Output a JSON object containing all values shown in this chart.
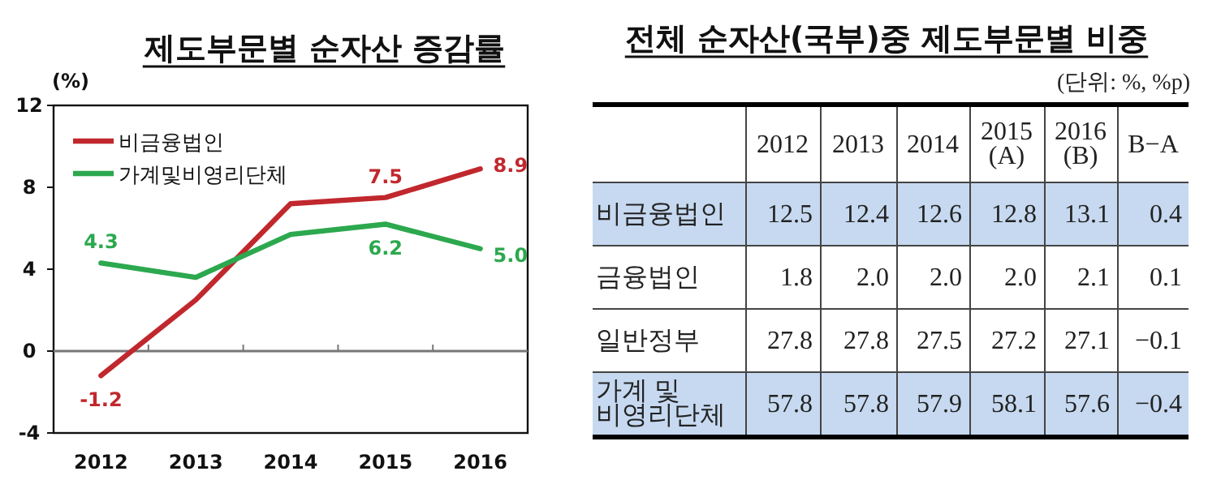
{
  "chart_data": [
    {
      "type": "line",
      "title": "제도부문별 순자산 증감률",
      "ylabel": "(%)",
      "categories": [
        "2012",
        "2013",
        "2014",
        "2015",
        "2016"
      ],
      "ylim": [
        -4,
        12
      ],
      "yticks": [
        -4,
        0,
        4,
        8,
        12
      ],
      "legend": "top left",
      "grid": false,
      "ref_lines": [
        {
          "axis": "y",
          "value": 0,
          "color": "#777777"
        }
      ],
      "series": [
        {
          "name": "비금융법인",
          "color": "#c0282d",
          "values": [
            -1.2,
            2.5,
            7.2,
            7.5,
            8.9
          ],
          "value_labels": [
            "-1.2",
            null,
            null,
            "7.5",
            "8.9"
          ]
        },
        {
          "name": "가계및비영리단체",
          "color": "#2ca84e",
          "values": [
            4.3,
            3.6,
            5.7,
            6.2,
            5.0
          ],
          "value_labels": [
            "4.3",
            null,
            null,
            "6.2",
            "5.0"
          ]
        }
      ]
    },
    {
      "type": "other",
      "title": "전체 순자산(국부)중 제도부문별 비중",
      "subtitle": "(단위: %, %p)",
      "categories": [
        "2012",
        "2013",
        "2014",
        "2015 (A)",
        "2016 (B)",
        "B−A"
      ],
      "y_categories": [
        "비금융법인",
        "금융법인",
        "일반정부",
        "가계 및 비영리단체"
      ],
      "cell_labels": [
        [
          "12.5",
          "12.4",
          "12.6",
          "12.8",
          "13.1",
          "0.4"
        ],
        [
          "1.8",
          "2.0",
          "2.0",
          "2.0",
          "2.1",
          "0.1"
        ],
        [
          "27.8",
          "27.8",
          "27.5",
          "27.2",
          "27.1",
          "−0.1"
        ],
        [
          "57.8",
          "57.8",
          "57.9",
          "58.1",
          "57.6",
          "−0.4"
        ]
      ]
    }
  ]
}
